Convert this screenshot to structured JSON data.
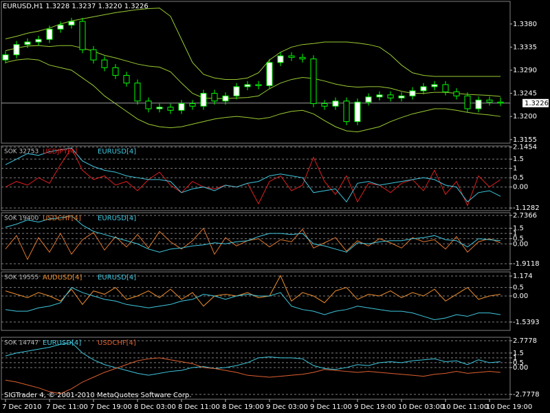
{
  "chart_data": [
    {
      "type": "candlestick",
      "title": "EURUSD,H1  1.3228 1.3237 1.3220 1.3226",
      "categories": [
        "7 Dec 2010",
        null,
        null,
        null,
        "7 Dec 11:00",
        null,
        null,
        null,
        "7 Dec 19:00",
        null,
        null,
        null,
        "8 Dec 03:00",
        null,
        null,
        null,
        "8 Dec 11:00",
        null,
        null,
        null,
        "8 Dec 19:00",
        null,
        null,
        null,
        "9 Dec 03:00",
        null,
        null,
        null,
        "9 Dec 11:00",
        null,
        null,
        null,
        "9 Dec 19:00",
        null,
        null,
        null,
        "10 Dec 03:00",
        null,
        null,
        null,
        "10 Dec 11:00",
        null,
        null,
        null,
        "10 Dec 19:00",
        null
      ],
      "open": [
        1.331,
        1.332,
        1.334,
        1.3345,
        1.335,
        1.337,
        1.3378,
        1.3385,
        1.333,
        1.331,
        1.3295,
        1.328,
        1.3265,
        1.323,
        1.3215,
        1.3218,
        1.3212,
        1.3225,
        1.322,
        1.3245,
        1.323,
        1.324,
        1.3258,
        1.3262,
        1.326,
        1.3305,
        1.3318,
        1.3315,
        1.3312,
        1.3225,
        1.322,
        1.323,
        1.319,
        1.3228,
        1.3238,
        1.3242,
        1.3236,
        1.324,
        1.325,
        1.3258,
        1.3262,
        1.3248,
        1.324,
        1.3215,
        1.3232,
        1.3228
      ],
      "high": [
        1.3327,
        1.3347,
        1.3352,
        1.3357,
        1.3377,
        1.3385,
        1.3392,
        1.3392,
        1.3337,
        1.3317,
        1.3302,
        1.3287,
        1.3272,
        1.3237,
        1.3225,
        1.3225,
        1.3232,
        1.3232,
        1.3252,
        1.3252,
        1.3247,
        1.3265,
        1.3269,
        1.3269,
        1.3312,
        1.3325,
        1.3325,
        1.3322,
        1.3319,
        1.3232,
        1.3237,
        1.3237,
        1.3235,
        1.3245,
        1.3249,
        1.3249,
        1.3247,
        1.3257,
        1.3265,
        1.3269,
        1.3269,
        1.3255,
        1.3247,
        1.3239,
        1.3239,
        1.3237
      ],
      "low": [
        1.3303,
        1.3313,
        1.3333,
        1.3338,
        1.3343,
        1.3363,
        1.3371,
        1.3323,
        1.3303,
        1.3288,
        1.3273,
        1.3258,
        1.3223,
        1.3208,
        1.3208,
        1.3205,
        1.3205,
        1.3213,
        1.3213,
        1.3223,
        1.3223,
        1.3233,
        1.3251,
        1.3253,
        1.3253,
        1.3298,
        1.3308,
        1.3305,
        1.3218,
        1.3213,
        1.3213,
        1.3183,
        1.3183,
        1.3221,
        1.3231,
        1.3229,
        1.3229,
        1.3233,
        1.3243,
        1.3251,
        1.3241,
        1.3233,
        1.3208,
        1.3208,
        1.3221,
        1.322
      ],
      "close": [
        1.332,
        1.334,
        1.3345,
        1.335,
        1.337,
        1.3378,
        1.3385,
        1.333,
        1.331,
        1.3295,
        1.328,
        1.3265,
        1.323,
        1.3215,
        1.3218,
        1.3212,
        1.3225,
        1.322,
        1.3245,
        1.323,
        1.324,
        1.3258,
        1.3262,
        1.326,
        1.3305,
        1.3318,
        1.3315,
        1.3312,
        1.3225,
        1.322,
        1.323,
        1.319,
        1.3228,
        1.3238,
        1.3242,
        1.3236,
        1.324,
        1.325,
        1.3258,
        1.3262,
        1.3248,
        1.324,
        1.3215,
        1.3232,
        1.3228,
        1.3226
      ],
      "candle_color": "#00ff00",
      "series": [
        {
          "color": "#9acd32",
          "values": [
            1.3351,
            1.3356,
            1.3362,
            1.3366,
            1.3372,
            1.338,
            1.3386,
            1.339,
            1.3394,
            1.3398,
            1.3402,
            1.3405,
            1.3408,
            1.341,
            1.3411,
            1.3395,
            1.335,
            1.3305,
            1.3282,
            1.3275,
            1.3272,
            1.3272,
            1.3275,
            1.3285,
            1.331,
            1.3325,
            1.3335,
            1.334,
            1.3342,
            1.3345,
            1.3345,
            1.3345,
            1.3343,
            1.334,
            1.3335,
            1.332,
            1.33,
            1.3285,
            1.328,
            1.3278,
            1.3278,
            1.3278,
            1.3278,
            1.3278,
            1.3278,
            1.3278
          ]
        },
        {
          "color": "#9acd32",
          "values": [
            1.3328,
            1.3333,
            1.3337,
            1.3338,
            1.3336,
            1.3338,
            1.3338,
            1.3333,
            1.3327,
            1.3319,
            1.3314,
            1.3308,
            1.3302,
            1.3298,
            1.3296,
            1.3287,
            1.3265,
            1.3245,
            1.3236,
            1.3235,
            1.3235,
            1.3236,
            1.3237,
            1.324,
            1.3254,
            1.3265,
            1.3272,
            1.3276,
            1.3274,
            1.3269,
            1.3263,
            1.3259,
            1.3257,
            1.3258,
            1.3258,
            1.3255,
            1.3249,
            1.3245,
            1.3245,
            1.3247,
            1.3247,
            1.3245,
            1.3243,
            1.3242,
            1.3241,
            1.3239
          ]
        },
        {
          "color": "#9acd32",
          "values": [
            1.3305,
            1.331,
            1.3312,
            1.331,
            1.33,
            1.3295,
            1.329,
            1.3275,
            1.326,
            1.324,
            1.3225,
            1.321,
            1.3195,
            1.3185,
            1.318,
            1.3178,
            1.318,
            1.3185,
            1.319,
            1.3195,
            1.3198,
            1.32,
            1.3198,
            1.3195,
            1.3198,
            1.3205,
            1.321,
            1.3212,
            1.3205,
            1.3192,
            1.318,
            1.3172,
            1.317,
            1.3175,
            1.318,
            1.319,
            1.3198,
            1.3205,
            1.321,
            1.3215,
            1.3215,
            1.3212,
            1.3208,
            1.3205,
            1.3203,
            1.32
          ]
        }
      ],
      "last_price": 1.3226,
      "ylim": [
        1.3148,
        1.3424
      ],
      "yticks": [
        {
          "value": 1.338,
          "label": "1.3380"
        },
        1.3335,
        {
          "value": 1.329,
          "label": "1.3290"
        },
        1.3245,
        {
          "value": 1.32,
          "label": "1.3200"
        },
        1.3155
      ]
    },
    {
      "type": "line",
      "label": "SOK 32753",
      "series": [
        {
          "name": "USDJPY[4]",
          "color": "#e02020",
          "values": [
            0,
            0.3,
            0.1,
            0.5,
            0.2,
            1.2,
            2.1,
            0.9,
            0.4,
            0.6,
            0.1,
            0.3,
            -0.2,
            0.4,
            0.8,
            0.1,
            -0.3,
            0.3,
            0,
            -0.1,
            0.1,
            0,
            0.2,
            -0.9,
            0.3,
            0.6,
            -0.2,
            0.1,
            1.6,
            0.3,
            -0.4,
            0.6,
            -0.8,
            0.2,
            0.1,
            -0.3,
            0.2,
            0.4,
            -0.2,
            0.9,
            -0.4,
            0.3,
            -1.0,
            0.6,
            0,
            0.4
          ]
        },
        {
          "name": "EURUSD[4]",
          "color": "#40c8e0",
          "values": [
            1.2,
            1.5,
            1.8,
            1.7,
            1.9,
            2.0,
            2.1,
            1.4,
            1.1,
            0.9,
            0.8,
            0.6,
            0.5,
            0.4,
            0.4,
            0.3,
            -0.3,
            -0.1,
            0,
            -0.2,
            0.1,
            0,
            0.2,
            0.3,
            0.6,
            0.7,
            0.6,
            0.5,
            -0.3,
            -0.2,
            -0.1,
            -0.8,
            0.2,
            0.3,
            0.1,
            0.2,
            0.3,
            0.4,
            0.5,
            0.4,
            0.1,
            0,
            -0.8,
            -0.3,
            -0.2,
            -0.5
          ]
        }
      ],
      "ylim": [
        -1.27,
        2.21
      ],
      "yticks": [
        2.1454,
        1.5,
        1,
        0.5,
        {
          "value": 0,
          "label": "0.00"
        },
        -1.1282
      ],
      "grid": true
    },
    {
      "type": "line",
      "label": "SOK 19400",
      "series": [
        {
          "name": "USDCHF[4]",
          "color": "#e07830",
          "values": [
            -0.5,
            0.8,
            -1.5,
            0.6,
            -0.8,
            1.0,
            -1.0,
            0.4,
            1.1,
            -0.6,
            0.7,
            -0.3,
            0.9,
            -0.4,
            1.2,
            0.2,
            -0.5,
            0.3,
            1.5,
            -1.0,
            0.6,
            -0.2,
            0.3,
            0.5,
            -0.3,
            0.4,
            0.2,
            1.4,
            -0.4,
            0.1,
            0.6,
            -0.7,
            0.3,
            -0.2,
            0.5,
            0.1,
            -0.4,
            0.6,
            0.2,
            0.4,
            -0.5,
            0.7,
            -0.8,
            0.2,
            0.5,
            0.1
          ]
        },
        {
          "name": "EURUSD[4]",
          "color": "#40c8e0",
          "values": [
            1.6,
            1.9,
            2.3,
            2.1,
            2.4,
            2.5,
            2.7,
            1.8,
            1.2,
            0.9,
            0.6,
            0.3,
            0,
            -0.5,
            -0.8,
            -0.5,
            -0.4,
            -0.2,
            -0.1,
            0.1,
            0,
            0.2,
            0.3,
            0.7,
            1.0,
            1.0,
            0.9,
            1.0,
            0,
            -0.2,
            -0.5,
            -0.8,
            0.1,
            0,
            0.2,
            0.3,
            0.3,
            0.5,
            0.6,
            0.8,
            0.4,
            0.3,
            -0.3,
            0.5,
            0.4,
            0.3
          ]
        }
      ],
      "ylim": [
        -2.5,
        3.0
      ],
      "yticks": [
        2.7366,
        1.5,
        1,
        0.5,
        {
          "value": 0,
          "label": "0.00"
        },
        -1.9118
      ],
      "grid": true
    },
    {
      "type": "line",
      "label": "SOK 19555",
      "series": [
        {
          "name": "AUDUSD[4]",
          "color": "#f09030",
          "values": [
            0.3,
            0.1,
            -0.1,
            0.2,
            0,
            -0.3,
            0.4,
            -0.5,
            0.3,
            0.1,
            0.5,
            -0.2,
            0,
            0.3,
            -0.1,
            0.4,
            -0.2,
            0.2,
            -0.6,
            0,
            0.1,
            0,
            0.2,
            -0.1,
            0,
            1.2,
            -0.3,
            0.2,
            0,
            -0.4,
            0.3,
            0.5,
            -0.2,
            0.1,
            0,
            0.3,
            -0.1,
            0.2,
            0,
            0.4,
            -0.3,
            0.1,
            0.5,
            -0.2,
            0,
            0.1
          ]
        },
        {
          "name": "EURUSD[4]",
          "color": "#40c8e0",
          "values": [
            -0.8,
            -0.9,
            -0.9,
            -0.7,
            -0.6,
            -0.4,
            0.5,
            0.2,
            0,
            -0.2,
            -0.3,
            -0.5,
            -0.6,
            -0.7,
            -0.6,
            -0.5,
            -0.3,
            -0.2,
            0.1,
            0,
            -0.2,
            0,
            0.1,
            0,
            0,
            0.2,
            -0.6,
            -0.8,
            -0.9,
            -1.1,
            -0.9,
            -0.8,
            -0.6,
            -0.7,
            -0.8,
            -0.9,
            -0.9,
            -1.0,
            -1.2,
            -1.4,
            -1.3,
            -1.1,
            -1.2,
            -1.0,
            -1.0,
            -1.1
          ]
        }
      ],
      "ylim": [
        -2.03,
        1.42
      ],
      "yticks": [
        1.174,
        0.5,
        {
          "value": 0,
          "label": "0.00"
        },
        -1.5393
      ],
      "grid": true
    },
    {
      "type": "line",
      "label": "SOK 14747",
      "series": [
        {
          "name": "EURUSD[4]",
          "color": "#40c8e0",
          "values": [
            1.2,
            1.5,
            1.7,
            1.9,
            2.1,
            2.4,
            2.6,
            1.5,
            0.8,
            0.3,
            0,
            -0.3,
            -0.6,
            -0.8,
            -0.6,
            -0.4,
            -0.3,
            0,
            0.1,
            -0.1,
            0,
            0.2,
            0.5,
            1.0,
            1.1,
            1.0,
            1.0,
            0.9,
            0.2,
            -0.1,
            -0.2,
            0,
            0.3,
            0.2,
            0.5,
            0.6,
            0.5,
            0.7,
            0.8,
            0.9,
            0.6,
            0.7,
            0.3,
            0.8,
            0.5,
            0.6
          ]
        },
        {
          "name": "USDCHF[4]",
          "color": "#e06030",
          "values": [
            -1.3,
            -1.5,
            -1.8,
            -2.1,
            -2.5,
            -2.7,
            -2.2,
            -1.5,
            -1.0,
            -0.5,
            -0.1,
            0.3,
            0.7,
            0.9,
            1.0,
            0.8,
            0.6,
            0.4,
            0,
            -0.1,
            -0.3,
            -0.5,
            -0.8,
            -0.9,
            -1.0,
            -0.9,
            -0.8,
            -0.7,
            -0.5,
            -0.2,
            -0.3,
            -0.4,
            -0.5,
            -0.4,
            -0.5,
            -0.6,
            -0.7,
            -0.8,
            -0.9,
            -0.7,
            -0.6,
            -0.4,
            -0.6,
            -0.5,
            -0.4,
            -0.5
          ]
        }
      ],
      "ylim": [
        -3.28,
        3.13
      ],
      "yticks": [
        2.7778,
        1.5,
        1,
        0.5,
        {
          "value": 0,
          "label": "0.00"
        },
        -2.7778
      ],
      "grid": true
    }
  ],
  "footer": "SIGTrader 4, © 2001-2010 MetaQuotes Software Corp."
}
